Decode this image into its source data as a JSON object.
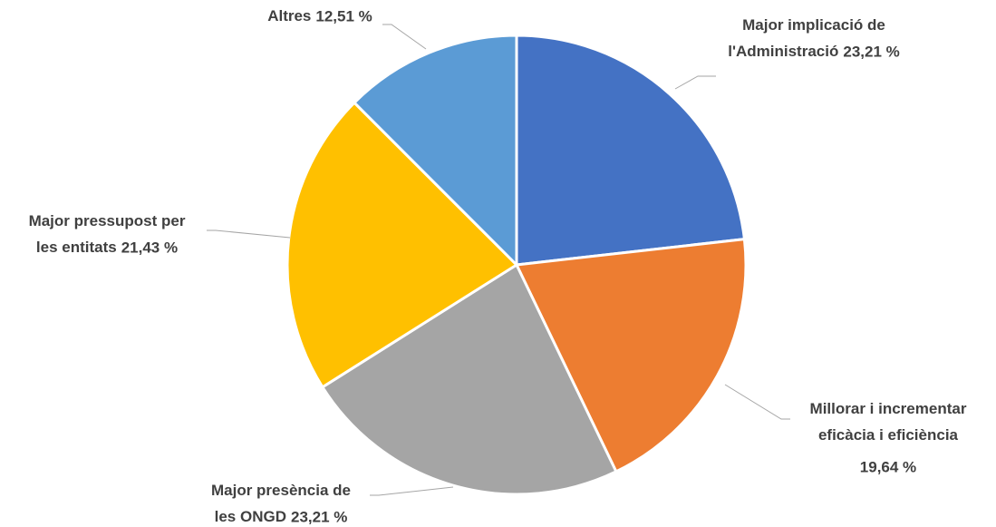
{
  "chart_data": {
    "type": "pie",
    "categories": [
      "Major implicació de l'Administració",
      "Millorar i incrementar eficàcia i eficiència",
      "Major presència de les ONGD",
      "Major pressupost per les entitats",
      "Altres"
    ],
    "values": [
      23.21,
      19.64,
      23.21,
      21.43,
      12.51
    ],
    "value_labels": [
      "23,21 %",
      "19,64 %",
      "23,21 %",
      "21,43 %",
      "12,51 %"
    ],
    "colors": [
      "#4472c4",
      "#ed7d31",
      "#a5a5a5",
      "#ffc000",
      "#5b9bd5"
    ]
  }
}
